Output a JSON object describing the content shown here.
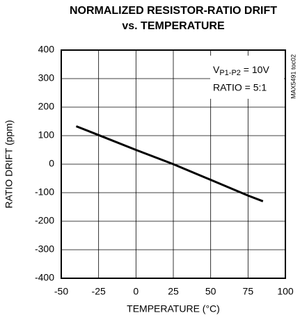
{
  "chart_data": {
    "type": "line",
    "title": [
      "NORMALIZED RESISTOR-RATIO DRIFT",
      "vs. TEMPERATURE"
    ],
    "x_label": "TEMPERATURE (°C)",
    "y_label": "RATIO DRIFT (ppm)",
    "annotation_voltage": {
      "main": "V",
      "subscript": "P1-P2",
      "suffix": " = 10V"
    },
    "annotation_ratio": "RATIO = 5:1",
    "figure_id": "MAX5491 toc02",
    "x": [
      -40,
      -25,
      0,
      25,
      50,
      75,
      85
    ],
    "series": [
      {
        "name": "ratio drift",
        "color": "#000000",
        "values": [
          133,
          102,
          50,
          0,
          -55,
          -110,
          -130
        ]
      }
    ],
    "xlim": [
      -50,
      100
    ],
    "xticks": [
      -50,
      -25,
      0,
      25,
      50,
      75,
      100
    ],
    "ylim": [
      -400,
      400
    ],
    "yticks": [
      -400,
      -300,
      -200,
      -100,
      0,
      100,
      200,
      300,
      400
    ],
    "grid": true
  }
}
